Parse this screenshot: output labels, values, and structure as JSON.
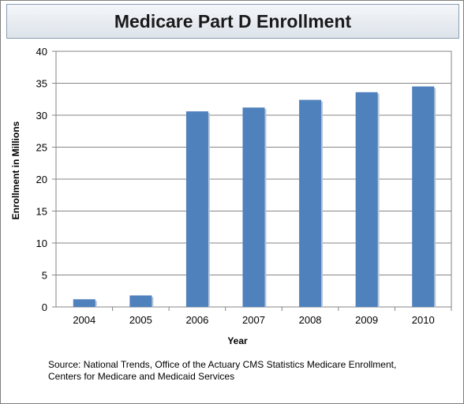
{
  "chart_data": {
    "type": "bar",
    "title": "Medicare Part D Enrollment",
    "categories": [
      "2004",
      "2005",
      "2006",
      "2007",
      "2008",
      "2009",
      "2010"
    ],
    "values": [
      1.2,
      1.8,
      30.6,
      31.2,
      32.4,
      33.6,
      34.5
    ],
    "xlabel": "Year",
    "ylabel": "Enrollment in Millions",
    "ylim": [
      0,
      40
    ],
    "yticks": [
      0,
      5,
      10,
      15,
      20,
      25,
      30,
      35,
      40
    ],
    "grid": true,
    "legend": "none",
    "bar_color": "#4f81bd",
    "source": "Source:  National Trends, Office of the Actuary CMS Statistics Medicare Enrollment, Centers for Medicare and Medicaid Services"
  }
}
